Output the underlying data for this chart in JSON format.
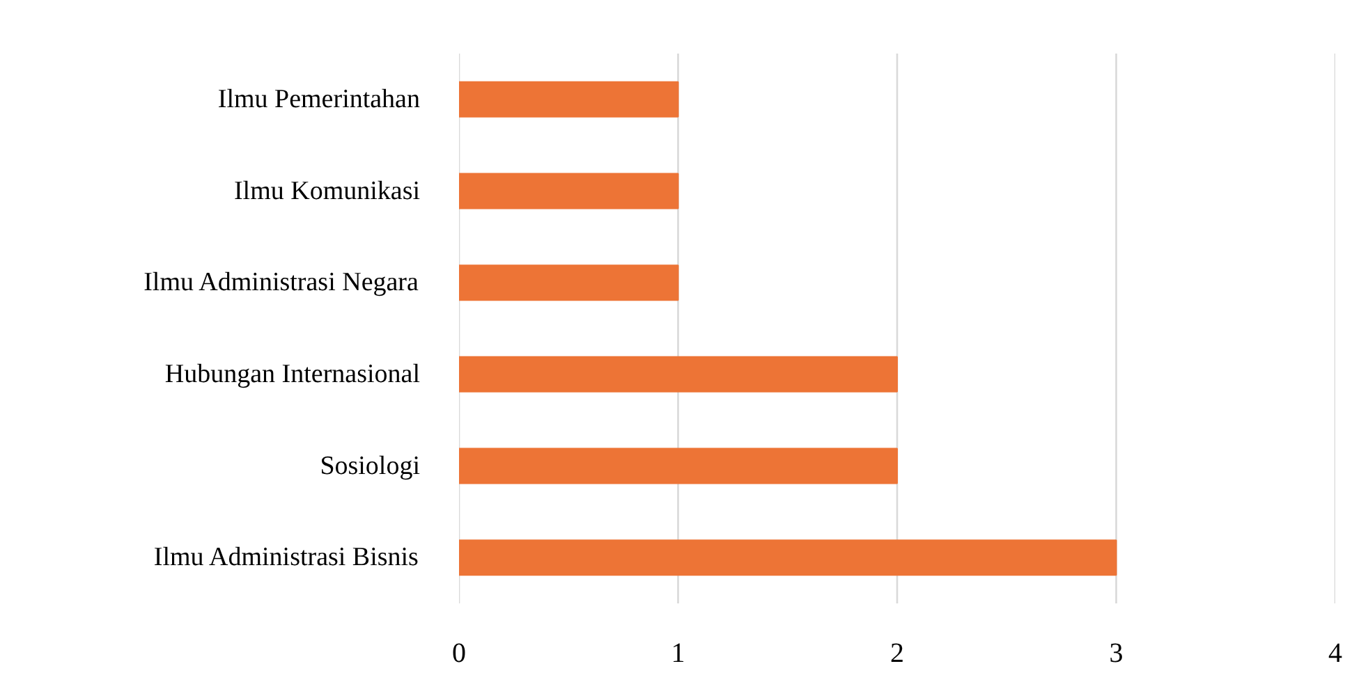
{
  "chart_data": {
    "type": "bar",
    "orientation": "horizontal",
    "categories": [
      "Ilmu Pemerintahan",
      "Ilmu Komunikasi",
      "Ilmu Administrasi Negara",
      "Hubungan Internasional",
      "Sosiologi",
      "Ilmu Administrasi Bisnis"
    ],
    "values": [
      1,
      1,
      1,
      2,
      2,
      3
    ],
    "color": "#ed7436",
    "xlim": [
      0,
      4
    ],
    "xticks": [
      0,
      1,
      2,
      3,
      4
    ],
    "grid": "x"
  }
}
